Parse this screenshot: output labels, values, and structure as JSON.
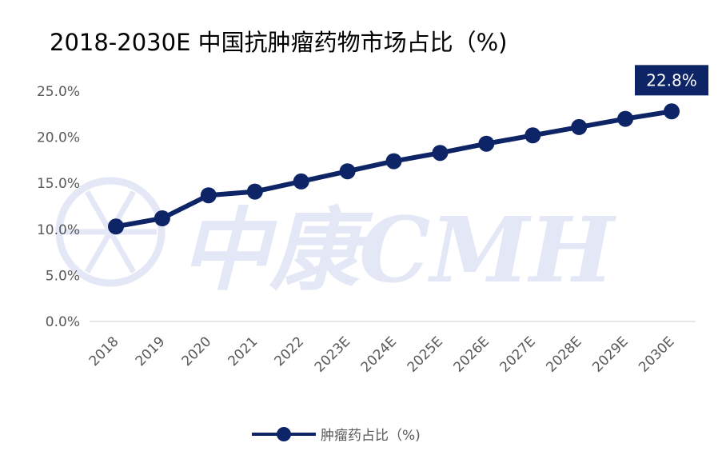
{
  "title": "2018-2030E 中国抗肿瘤药物市场占比（%)",
  "watermark": "中康CMH",
  "colors": {
    "series": "#0d2466",
    "callout_bg": "#0d2466",
    "callout_text": "#ffffff",
    "watermark": "#e4e8f6",
    "axis": "#d9d9d9"
  },
  "chart_data": {
    "type": "line",
    "title": "2018-2030E 中国抗肿瘤药物市场占比（%)",
    "categories": [
      "2018",
      "2019",
      "2020",
      "2021",
      "2022",
      "2023E",
      "2024E",
      "2025E",
      "2026E",
      "2027E",
      "2028E",
      "2029E",
      "2030E"
    ],
    "series": [
      {
        "name": "肿瘤药占比（%)",
        "values": [
          10.3,
          11.2,
          13.7,
          14.1,
          15.2,
          16.3,
          17.4,
          18.3,
          19.3,
          20.2,
          21.1,
          22.0,
          22.8
        ]
      }
    ],
    "ylim": [
      0,
      25
    ],
    "yticks": [
      "0.0%",
      "5.0%",
      "10.0%",
      "15.0%",
      "20.0%",
      "25.0%"
    ],
    "ytick_values": [
      0,
      5,
      10,
      15,
      20,
      25
    ],
    "callout": {
      "category": "2030E",
      "label": "22.8%"
    },
    "legend_position": "bottom",
    "grid": false
  }
}
